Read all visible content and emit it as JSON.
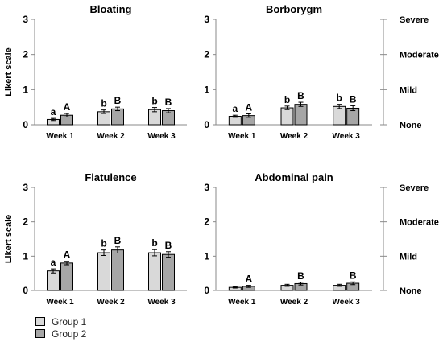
{
  "chart_data": [
    {
      "type": "bar",
      "title": "Bloating",
      "ylabel": "Likert scale",
      "ylim": [
        0,
        3
      ],
      "yticks": [
        "0",
        "1",
        "2",
        "3"
      ],
      "categories": [
        "Week 1",
        "Week 2",
        "Week 3"
      ],
      "series": [
        {
          "name": "Group 1",
          "values": [
            0.15,
            0.37,
            0.43
          ],
          "errors": [
            0.03,
            0.05,
            0.06
          ],
          "labels": [
            "a",
            "b",
            "b"
          ]
        },
        {
          "name": "Group 2",
          "values": [
            0.27,
            0.45,
            0.4
          ],
          "errors": [
            0.05,
            0.05,
            0.06
          ],
          "labels": [
            "A",
            "B",
            "B"
          ]
        }
      ]
    },
    {
      "type": "bar",
      "title": "Borborygm",
      "ylabel": "",
      "ylim": [
        0,
        3
      ],
      "yticks": [
        "0",
        "1",
        "2",
        "3"
      ],
      "categories": [
        "Week 1",
        "Week 2",
        "Week 3"
      ],
      "series": [
        {
          "name": "Group 1",
          "values": [
            0.24,
            0.48,
            0.52
          ],
          "errors": [
            0.03,
            0.05,
            0.06
          ],
          "labels": [
            "a",
            "b",
            "b"
          ]
        },
        {
          "name": "Group 2",
          "values": [
            0.26,
            0.58,
            0.47
          ],
          "errors": [
            0.05,
            0.06,
            0.07
          ],
          "labels": [
            "A",
            "B",
            "B"
          ]
        }
      ]
    },
    {
      "type": "bar",
      "title": "Flatulence",
      "ylabel": "Likert scale",
      "ylim": [
        0,
        3
      ],
      "yticks": [
        "0",
        "1",
        "2",
        "3"
      ],
      "categories": [
        "Week 1",
        "Week 2",
        "Week 3"
      ],
      "series": [
        {
          "name": "Group 1",
          "values": [
            0.57,
            1.1,
            1.1
          ],
          "errors": [
            0.06,
            0.08,
            0.09
          ],
          "labels": [
            "a",
            "b",
            "b"
          ]
        },
        {
          "name": "Group 2",
          "values": [
            0.8,
            1.18,
            1.05
          ],
          "errors": [
            0.05,
            0.09,
            0.08
          ],
          "labels": [
            "A",
            "B",
            "B"
          ]
        }
      ]
    },
    {
      "type": "bar",
      "title": "Abdominal pain",
      "ylabel": "",
      "ylim": [
        0,
        3
      ],
      "yticks": [
        "0",
        "1",
        "2",
        "3"
      ],
      "categories": [
        "Week 1",
        "Week 2",
        "Week 3"
      ],
      "series": [
        {
          "name": "Group 1",
          "values": [
            0.09,
            0.15,
            0.15
          ],
          "errors": [
            0.02,
            0.03,
            0.03
          ],
          "labels": [
            "",
            "",
            ""
          ]
        },
        {
          "name": "Group 2",
          "values": [
            0.12,
            0.2,
            0.21
          ],
          "errors": [
            0.03,
            0.04,
            0.04
          ],
          "labels": [
            "A",
            "B",
            "B"
          ]
        }
      ]
    }
  ],
  "severity_scale": [
    "None",
    "Mild",
    "Moderate",
    "Severe"
  ],
  "legend": [
    {
      "label": "Group 1",
      "color": "#d9d9d9"
    },
    {
      "label": "Group 2",
      "color": "#a6a6a6"
    }
  ]
}
